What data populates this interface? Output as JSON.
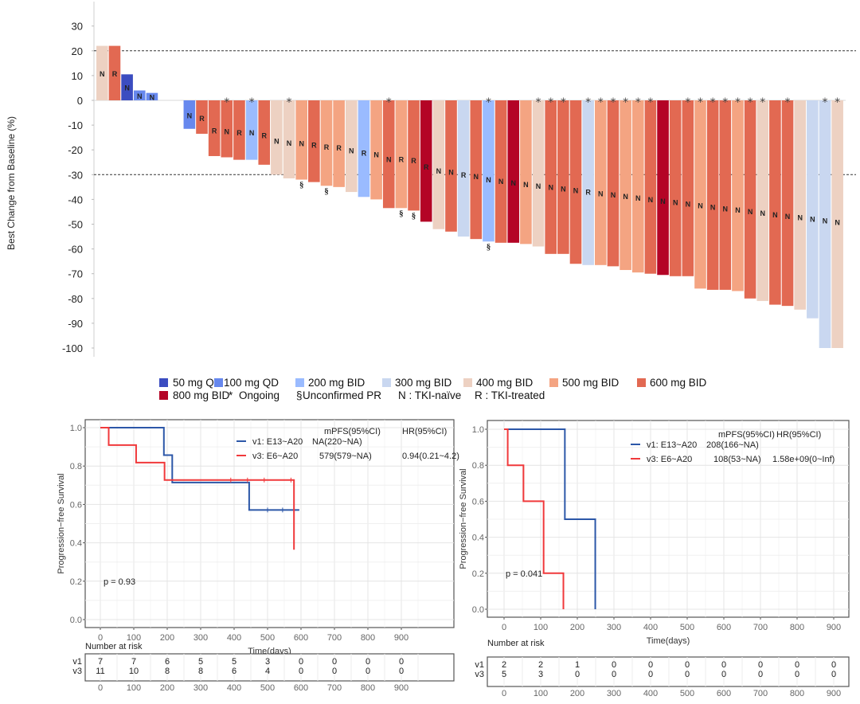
{
  "waterfall": {
    "chart_data": {
      "type": "bar",
      "title": "",
      "ylabel": "Best Change from Baseline (%)",
      "xlabel": "",
      "ylim": [
        -100,
        35
      ],
      "yticks": [
        30,
        20,
        10,
        0,
        -10,
        -20,
        -30,
        -40,
        -50,
        -60,
        -70,
        -80,
        -90,
        -100
      ],
      "reference_lines": [
        20,
        -30
      ],
      "dose_colors": {
        "50 mg QD": "#3b4cc0",
        "100 mg QD": "#6788ee",
        "200 mg BID": "#9abbff",
        "300 mg BID": "#c9d7f0",
        "400 mg BID": "#edd1c2",
        "500 mg BID": "#f4a482",
        "600 mg BID": "#e26952",
        "800 mg BID": "#b40426"
      },
      "bars": [
        {
          "dose": "400 mg BID",
          "value": 22,
          "label": "N",
          "ongoing": false,
          "unconfirmed_pr": false
        },
        {
          "dose": "600 mg BID",
          "value": 22,
          "label": "R",
          "ongoing": false,
          "unconfirmed_pr": false
        },
        {
          "dose": "50 mg QD",
          "value": 10.5,
          "label": "N",
          "ongoing": false,
          "unconfirmed_pr": false
        },
        {
          "dose": "100 mg QD",
          "value": 4,
          "label": "N",
          "ongoing": false,
          "unconfirmed_pr": false
        },
        {
          "dose": "100 mg QD",
          "value": 3,
          "label": "N",
          "ongoing": false,
          "unconfirmed_pr": false
        },
        null,
        null,
        {
          "dose": "100 mg QD",
          "value": -11.5,
          "label": "N",
          "ongoing": false,
          "unconfirmed_pr": false
        },
        {
          "dose": "600 mg BID",
          "value": -13.5,
          "label": "R",
          "ongoing": false,
          "unconfirmed_pr": false
        },
        {
          "dose": "600 mg BID",
          "value": -22.5,
          "label": "R",
          "ongoing": false,
          "unconfirmed_pr": false
        },
        {
          "dose": "600 mg BID",
          "value": -23,
          "label": "N",
          "ongoing": true,
          "unconfirmed_pr": false
        },
        {
          "dose": "600 mg BID",
          "value": -24,
          "label": "R",
          "ongoing": false,
          "unconfirmed_pr": false
        },
        {
          "dose": "200 mg BID",
          "value": -24,
          "label": "N",
          "ongoing": true,
          "unconfirmed_pr": false
        },
        {
          "dose": "600 mg BID",
          "value": -26,
          "label": "R",
          "ongoing": false,
          "unconfirmed_pr": false
        },
        {
          "dose": "400 mg BID",
          "value": -30,
          "label": "N",
          "ongoing": false,
          "unconfirmed_pr": false
        },
        {
          "dose": "400 mg BID",
          "value": -31.5,
          "label": "N",
          "ongoing": true,
          "unconfirmed_pr": false
        },
        {
          "dose": "500 mg BID",
          "value": -32,
          "label": "N",
          "ongoing": false,
          "unconfirmed_pr": true
        },
        {
          "dose": "600 mg BID",
          "value": -33,
          "label": "R",
          "ongoing": false,
          "unconfirmed_pr": false
        },
        {
          "dose": "500 mg BID",
          "value": -34.5,
          "label": "R",
          "ongoing": false,
          "unconfirmed_pr": true
        },
        {
          "dose": "500 mg BID",
          "value": -35,
          "label": "R",
          "ongoing": false,
          "unconfirmed_pr": false
        },
        {
          "dose": "400 mg BID",
          "value": -37,
          "label": "N",
          "ongoing": false,
          "unconfirmed_pr": false
        },
        {
          "dose": "200 mg BID",
          "value": -39,
          "label": "R",
          "ongoing": false,
          "unconfirmed_pr": false
        },
        {
          "dose": "500 mg BID",
          "value": -40,
          "label": "N",
          "ongoing": false,
          "unconfirmed_pr": false
        },
        {
          "dose": "600 mg BID",
          "value": -43.5,
          "label": "N",
          "ongoing": true,
          "unconfirmed_pr": false
        },
        {
          "dose": "500 mg BID",
          "value": -43.5,
          "label": "R",
          "ongoing": false,
          "unconfirmed_pr": true
        },
        {
          "dose": "600 mg BID",
          "value": -44.5,
          "label": "R",
          "ongoing": false,
          "unconfirmed_pr": true
        },
        {
          "dose": "800 mg BID",
          "value": -49,
          "label": "R",
          "ongoing": false,
          "unconfirmed_pr": false
        },
        {
          "dose": "400 mg BID",
          "value": -52,
          "label": "N",
          "ongoing": false,
          "unconfirmed_pr": false
        },
        {
          "dose": "600 mg BID",
          "value": -53,
          "label": "N",
          "ongoing": false,
          "unconfirmed_pr": false
        },
        {
          "dose": "300 mg BID",
          "value": -55,
          "label": "R",
          "ongoing": false,
          "unconfirmed_pr": false
        },
        {
          "dose": "600 mg BID",
          "value": -56,
          "label": "N",
          "ongoing": false,
          "unconfirmed_pr": false
        },
        {
          "dose": "200 mg BID",
          "value": -57,
          "label": "N",
          "ongoing": true,
          "unconfirmed_pr": true
        },
        {
          "dose": "600 mg BID",
          "value": -57.5,
          "label": "N",
          "ongoing": false,
          "unconfirmed_pr": false
        },
        {
          "dose": "800 mg BID",
          "value": -57.5,
          "label": "N",
          "ongoing": false,
          "unconfirmed_pr": false
        },
        {
          "dose": "500 mg BID",
          "value": -58,
          "label": "N",
          "ongoing": false,
          "unconfirmed_pr": false
        },
        {
          "dose": "400 mg BID",
          "value": -59,
          "label": "N",
          "ongoing": true,
          "unconfirmed_pr": false
        },
        {
          "dose": "600 mg BID",
          "value": -62,
          "label": "N",
          "ongoing": true,
          "unconfirmed_pr": false
        },
        {
          "dose": "600 mg BID",
          "value": -62,
          "label": "N",
          "ongoing": true,
          "unconfirmed_pr": false
        },
        {
          "dose": "600 mg BID",
          "value": -66,
          "label": "N",
          "ongoing": false,
          "unconfirmed_pr": false
        },
        {
          "dose": "300 mg BID",
          "value": -66.5,
          "label": "R",
          "ongoing": true,
          "unconfirmed_pr": false
        },
        {
          "dose": "500 mg BID",
          "value": -66.5,
          "label": "N",
          "ongoing": true,
          "unconfirmed_pr": false
        },
        {
          "dose": "600 mg BID",
          "value": -67,
          "label": "N",
          "ongoing": true,
          "unconfirmed_pr": false
        },
        {
          "dose": "500 mg BID",
          "value": -68.5,
          "label": "N",
          "ongoing": true,
          "unconfirmed_pr": false
        },
        {
          "dose": "500 mg BID",
          "value": -69.5,
          "label": "N",
          "ongoing": true,
          "unconfirmed_pr": false
        },
        {
          "dose": "600 mg BID",
          "value": -70,
          "label": "N",
          "ongoing": true,
          "unconfirmed_pr": false
        },
        {
          "dose": "800 mg BID",
          "value": -70.5,
          "label": "N",
          "ongoing": false,
          "unconfirmed_pr": false
        },
        {
          "dose": "600 mg BID",
          "value": -71,
          "label": "N",
          "ongoing": false,
          "unconfirmed_pr": false
        },
        {
          "dose": "600 mg BID",
          "value": -71,
          "label": "N",
          "ongoing": true,
          "unconfirmed_pr": false
        },
        {
          "dose": "500 mg BID",
          "value": -76,
          "label": "N",
          "ongoing": true,
          "unconfirmed_pr": false
        },
        {
          "dose": "600 mg BID",
          "value": -76.5,
          "label": "N",
          "ongoing": true,
          "unconfirmed_pr": false
        },
        {
          "dose": "600 mg BID",
          "value": -76.5,
          "label": "N",
          "ongoing": true,
          "unconfirmed_pr": false
        },
        {
          "dose": "500 mg BID",
          "value": -77,
          "label": "N",
          "ongoing": true,
          "unconfirmed_pr": false
        },
        {
          "dose": "600 mg BID",
          "value": -80,
          "label": "N",
          "ongoing": true,
          "unconfirmed_pr": false
        },
        {
          "dose": "400 mg BID",
          "value": -81,
          "label": "N",
          "ongoing": true,
          "unconfirmed_pr": false
        },
        {
          "dose": "600 mg BID",
          "value": -82.5,
          "label": "N",
          "ongoing": false,
          "unconfirmed_pr": false
        },
        {
          "dose": "600 mg BID",
          "value": -83,
          "label": "N",
          "ongoing": true,
          "unconfirmed_pr": false
        },
        {
          "dose": "400 mg BID",
          "value": -84.5,
          "label": "N",
          "ongoing": false,
          "unconfirmed_pr": false
        },
        {
          "dose": "300 mg BID",
          "value": -88,
          "label": "N",
          "ongoing": false,
          "unconfirmed_pr": false
        },
        {
          "dose": "300 mg BID",
          "value": -100,
          "label": "N",
          "ongoing": true,
          "unconfirmed_pr": false
        },
        {
          "dose": "400 mg BID",
          "value": -100,
          "label": "N",
          "ongoing": true,
          "unconfirmed_pr": false
        }
      ],
      "legend": {
        "placement": "bottom",
        "row1": [
          "50 mg QD",
          "100 mg QD",
          "200 mg BID",
          "300 mg BID",
          "400 mg BID",
          "500 mg BID",
          "600 mg BID"
        ],
        "row2": [
          {
            "kind": "swatch",
            "text": "800 mg BID"
          },
          {
            "kind": "symbol",
            "symbol": "*",
            "text": "Ongoing"
          },
          {
            "kind": "symbol",
            "symbol": "§",
            "text": "Unconfirmed PR"
          },
          {
            "kind": "text",
            "text": "N : TKI-naïve"
          },
          {
            "kind": "text",
            "text": "R : TKI-treated"
          }
        ]
      },
      "symbols": {
        "ongoing": "*",
        "unconfirmed_pr": "§"
      }
    }
  },
  "km_left": {
    "chart_data": {
      "type": "line",
      "ylabel": "Progression−free Survival",
      "xlabel": "Time(days)",
      "xlim": [
        0,
        900
      ],
      "ylim": [
        0,
        1
      ],
      "xticks": [
        0,
        100,
        200,
        300,
        400,
        500,
        600,
        700,
        800,
        900
      ],
      "yticks": [
        "0.0",
        "0.2",
        "0.4",
        "0.6",
        "0.8",
        "1.0"
      ],
      "legend_header": {
        "mpfs": "mPFS(95%CI)",
        "hr": "HR(95%CI)"
      },
      "series": [
        {
          "name": "v1: E13~A20",
          "color": "#2c57a8",
          "mpfs": "NA(220~NA)",
          "hr": "",
          "steps": [
            [
              0,
              1.0
            ],
            [
              190,
              1.0
            ],
            [
              190,
              0.857
            ],
            [
              215,
              0.857
            ],
            [
              215,
              0.714
            ],
            [
              445,
              0.714
            ],
            [
              445,
              0.571
            ],
            [
              595,
              0.571
            ]
          ],
          "censors": [
            [
              500,
              0.571
            ],
            [
              545,
              0.571
            ]
          ]
        },
        {
          "name": "v3: E6~A20",
          "color": "#f0393b",
          "mpfs": "579(579~NA)",
          "hr": "0.94(0.21~4.2)",
          "steps": [
            [
              0,
              1.0
            ],
            [
              25,
              1.0
            ],
            [
              25,
              0.909
            ],
            [
              107,
              0.909
            ],
            [
              107,
              0.818
            ],
            [
              192,
              0.818
            ],
            [
              192,
              0.727
            ],
            [
              579,
              0.727
            ],
            [
              579,
              0.364
            ]
          ],
          "censors": [
            [
              390,
              0.727
            ],
            [
              440,
              0.727
            ],
            [
              490,
              0.727
            ],
            [
              570,
              0.727
            ]
          ]
        }
      ],
      "p_value": "p = 0.93",
      "risk_table": {
        "title": "Number at risk",
        "rows": [
          {
            "label": "v1",
            "color": "#2c57a8",
            "values": [
              7,
              7,
              6,
              5,
              5,
              3,
              0,
              0,
              0,
              0
            ]
          },
          {
            "label": "v3",
            "color": "#f0393b",
            "values": [
              11,
              10,
              8,
              8,
              6,
              4,
              0,
              0,
              0,
              0
            ]
          }
        ]
      }
    }
  },
  "km_right": {
    "chart_data": {
      "type": "line",
      "ylabel": "Progression−free Survival",
      "xlabel": "Time(days)",
      "xlim": [
        0,
        900
      ],
      "ylim": [
        0,
        1
      ],
      "xticks": [
        0,
        100,
        200,
        300,
        400,
        500,
        600,
        700,
        800,
        900
      ],
      "yticks": [
        "0.0",
        "0.2",
        "0.4",
        "0.6",
        "0.8",
        "1.0"
      ],
      "legend_header": {
        "mpfs": "mPFS(95%CI)",
        "hr": "HR(95%CI)"
      },
      "series": [
        {
          "name": "v1: E13~A20",
          "color": "#2c57a8",
          "mpfs": "208(166~NA)",
          "hr": "",
          "steps": [
            [
              0,
              1.0
            ],
            [
              166,
              1.0
            ],
            [
              166,
              0.5
            ],
            [
              249,
              0.5
            ],
            [
              249,
              0.0
            ]
          ],
          "censors": []
        },
        {
          "name": "v3: E6~A20",
          "color": "#f0393b",
          "mpfs": "108(53~NA)",
          "hr": "1.58e+09(0~Inf)",
          "steps": [
            [
              0,
              1.0
            ],
            [
              10,
              1.0
            ],
            [
              10,
              0.8
            ],
            [
              53,
              0.8
            ],
            [
              53,
              0.6
            ],
            [
              108,
              0.6
            ],
            [
              108,
              0.4
            ],
            [
              108,
              0.2
            ],
            [
              162,
              0.2
            ],
            [
              162,
              0.0
            ]
          ],
          "censors": []
        }
      ],
      "p_value": "p = 0.041",
      "risk_table": {
        "title": "Number at risk",
        "rows": [
          {
            "label": "v1",
            "color": "#2c57a8",
            "values": [
              2,
              2,
              1,
              0,
              0,
              0,
              0,
              0,
              0,
              0
            ]
          },
          {
            "label": "v3",
            "color": "#f0393b",
            "values": [
              5,
              3,
              0,
              0,
              0,
              0,
              0,
              0,
              0,
              0
            ]
          }
        ]
      }
    }
  }
}
